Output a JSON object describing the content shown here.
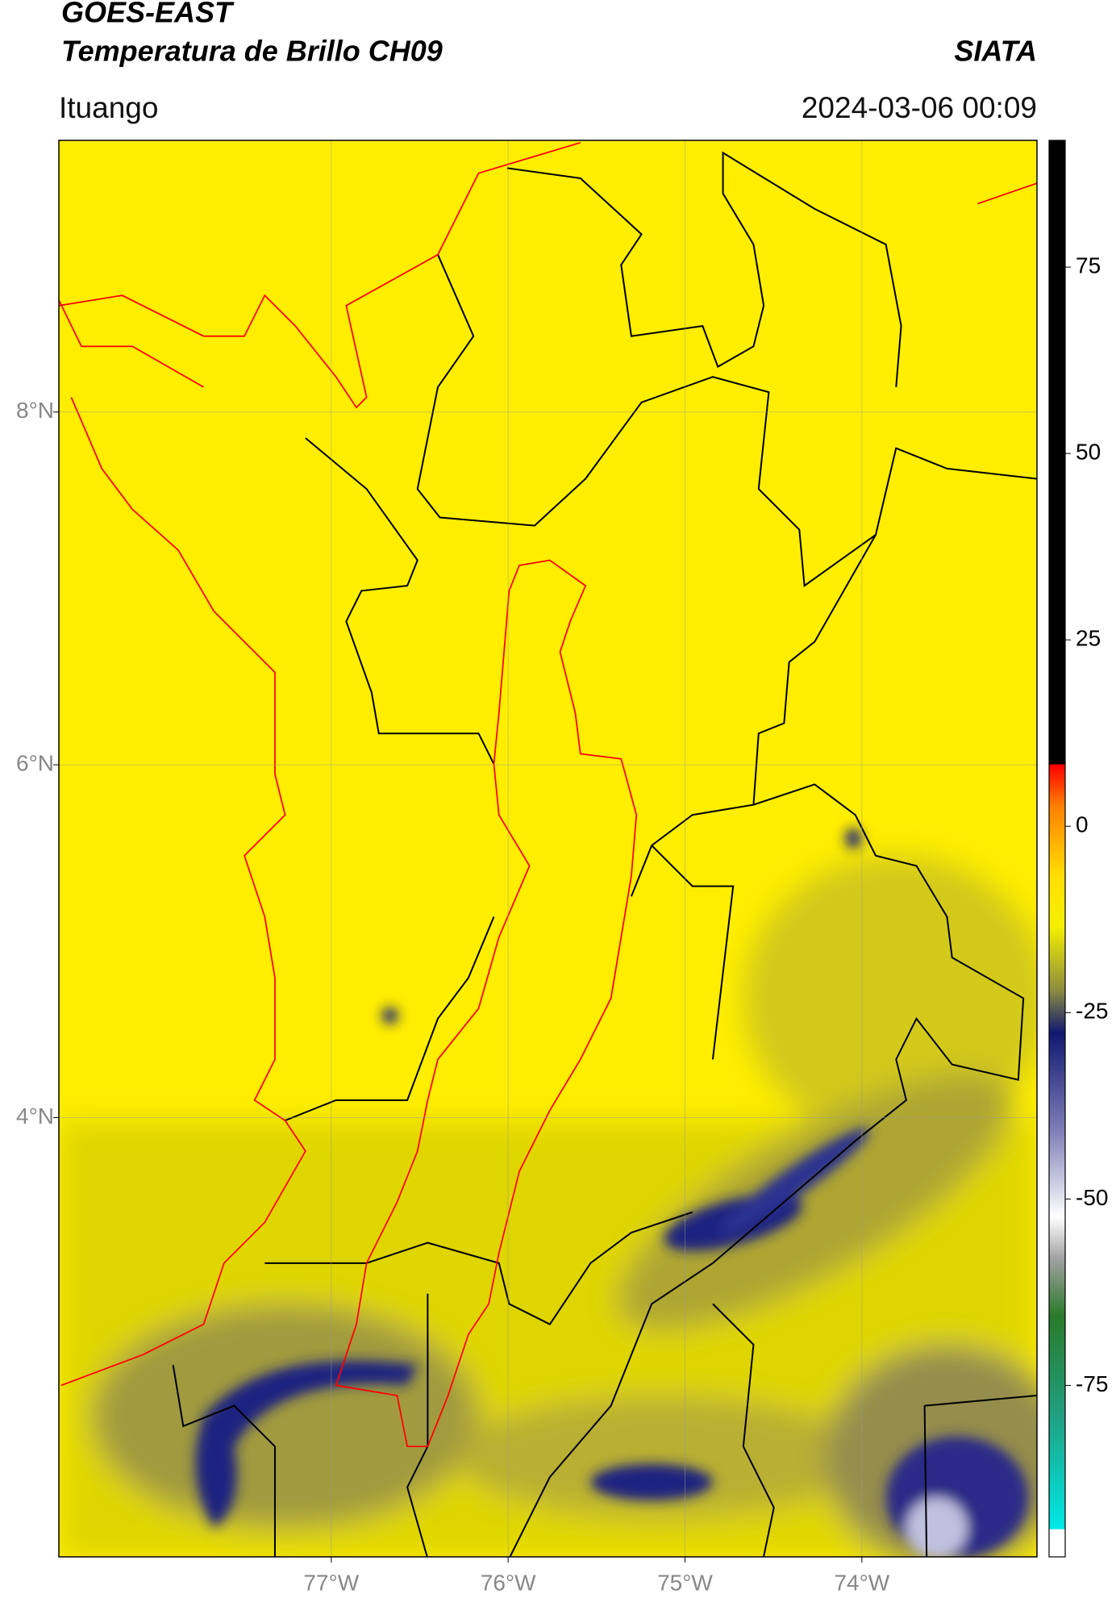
{
  "chart_data": {
    "type": "map",
    "title": "GOES-EAST",
    "subtitle": "Temperatura de Brillo CH09",
    "source": "SIATA",
    "location": "Ituango",
    "datetime": "2024-03-06 00:09",
    "xlim": [
      -78.54,
      -73.01
    ],
    "ylim": [
      1.51,
      9.54
    ],
    "xticks": [
      {
        "value": -77,
        "label": "77°W"
      },
      {
        "value": -76,
        "label": "76°W"
      },
      {
        "value": -75,
        "label": "75°W"
      },
      {
        "value": -74,
        "label": "74°W"
      }
    ],
    "yticks": [
      {
        "value": 8,
        "label": "8°N"
      },
      {
        "value": 6,
        "label": "6°N"
      },
      {
        "value": 4,
        "label": "4°N"
      }
    ],
    "grid": true,
    "colorbar": {
      "lim": [
        -98,
        92
      ],
      "ticks": [
        75,
        50,
        25,
        0,
        -25,
        -50,
        -75
      ]
    }
  }
}
